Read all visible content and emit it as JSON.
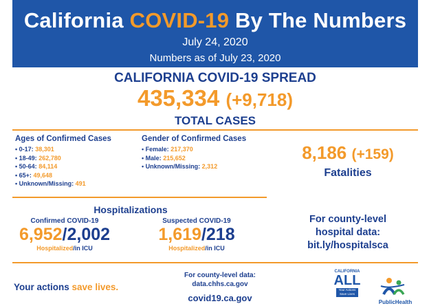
{
  "header": {
    "title_part1": "California",
    "title_highlight": "COVID-19",
    "title_part2": "By The Numbers",
    "date": "July 24, 2020",
    "as_of": "Numbers as of July 23, 2020",
    "bg_color": "#1f56a8",
    "accent_color": "#f39a2b"
  },
  "spread": {
    "title": "CALIFORNIA COVID-19 SPREAD",
    "total": "435,334",
    "change": "(+9,718)",
    "label": "TOTAL CASES"
  },
  "ages": {
    "heading": "Ages of Confirmed Cases",
    "items": [
      {
        "label": "0-17:",
        "value": "38,301"
      },
      {
        "label": "18-49:",
        "value": "262,780"
      },
      {
        "label": "50-64:",
        "value": "84,114"
      },
      {
        "label": "65+:",
        "value": "49,648"
      },
      {
        "label": "Unknown/Missing:",
        "value": "491"
      }
    ]
  },
  "gender": {
    "heading": "Gender of Confirmed Cases",
    "items": [
      {
        "label": "Female:",
        "value": "217,370"
      },
      {
        "label": "Male:",
        "value": "215,652"
      },
      {
        "label": "Unknown/Missing:",
        "value": "2,312"
      }
    ]
  },
  "fatalities": {
    "value": "8,186",
    "change": "(+159)",
    "label": "Fatalities"
  },
  "hospitalizations": {
    "title": "Hospitalizations",
    "confirmed": {
      "label": "Confirmed COVID-19",
      "hospitalized": "6,952",
      "icu": "2,002",
      "foot_hosp": "Hospitalized",
      "foot_icu": "/in ICU"
    },
    "suspected": {
      "label": "Suspected COVID-19",
      "hospitalized": "1,619",
      "icu": "218",
      "foot_hosp": "Hospitalized",
      "foot_icu": "/in ICU"
    }
  },
  "county_hospital": {
    "line1": "For county-level",
    "line2": "hospital data:",
    "link": "bit.ly/hospitalsca"
  },
  "footer": {
    "actions_part1": "Your actions",
    "actions_highlight": "save lives.",
    "county_data_label": "For county-level data:",
    "county_data_url": "data.chhs.ca.gov",
    "covid_url": "covid19.ca.gov",
    "ca_logo_top": "CALIFORNIA",
    "ca_logo_all": "ALL",
    "ca_logo_box": "Your Actions Save Lives",
    "cdph_logo_text": "PublicHealth"
  }
}
